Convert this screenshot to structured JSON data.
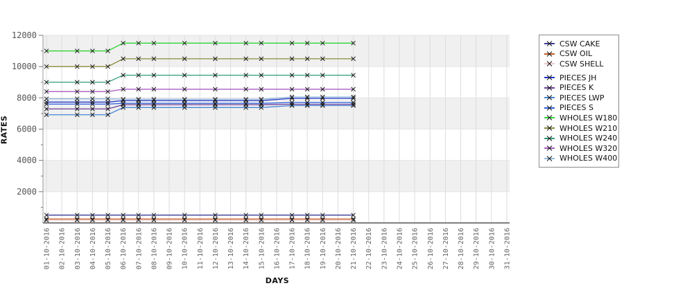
{
  "page": {
    "background": "#ffffff"
  },
  "axes": {
    "x_title": "DAYS",
    "y_title": "RATES",
    "tick_label_color": "#666666",
    "y_tick_label_color": "#555555",
    "axis_line_color": "#555555",
    "left_axis_color": "#999999",
    "grid_color": "#dcdcdc",
    "band_colors": [
      "#f0f0f0",
      "#ffffff"
    ],
    "marker_color": "#1a1a1a"
  },
  "legend": {
    "border_color": "#8a8a8a",
    "group_break_after": "CSW SHELL"
  },
  "chart_data": {
    "type": "line",
    "title": "",
    "xlabel": "DAYS",
    "ylabel": "RATES",
    "ylim": [
      0,
      12000
    ],
    "y_major_ticks": [
      2000,
      4000,
      6000,
      8000,
      10000,
      12000
    ],
    "y_minor_step": 1000,
    "grid": true,
    "legend_position": "top-right-outside",
    "marker": "x",
    "x_tick_labels": [
      "01-10-2016",
      "02-10-2016",
      "03-10-2016",
      "04-10-2016",
      "05-10-2016",
      "06-10-2016",
      "07-10-2016",
      "08-10-2016",
      "09-10-2016",
      "10-10-2016",
      "11-10-2016",
      "12-10-2016",
      "13-10-2016",
      "14-10-2016",
      "15-10-2016",
      "16-10-2016",
      "17-10-2016",
      "18-10-2016",
      "19-10-2016",
      "20-10-2016",
      "21-10-2016",
      "22-10-2016",
      "23-10-2016",
      "24-10-2016",
      "25-10-2016",
      "26-10-2016",
      "27-10-2016",
      "28-10-2016",
      "29-10-2016",
      "30-10-2016",
      "31-10-2016"
    ],
    "data_days": [
      1,
      3,
      4,
      5,
      6,
      7,
      8,
      10,
      12,
      14,
      15,
      17,
      18,
      19,
      21
    ],
    "series": [
      {
        "name": "CSW CAKE",
        "color": "#3b3b98",
        "values": [
          500,
          500,
          500,
          500,
          500,
          500,
          500,
          500,
          500,
          500,
          500,
          500,
          500,
          500,
          500
        ]
      },
      {
        "name": "CSW OIL",
        "color": "#c05a20",
        "values": [
          250,
          250,
          250,
          250,
          250,
          250,
          250,
          250,
          250,
          250,
          250,
          250,
          250,
          250,
          250
        ]
      },
      {
        "name": "CSW SHELL",
        "color": "#eec5c5",
        "values": [
          175,
          175,
          175,
          175,
          175,
          175,
          175,
          175,
          175,
          175,
          175,
          175,
          175,
          175,
          175
        ]
      },
      {
        "name": "PIECES JH",
        "color": "#2036cc",
        "values": [
          7730,
          7730,
          7730,
          7730,
          7820,
          7820,
          7820,
          7820,
          7820,
          7820,
          7820,
          7970,
          7970,
          7970,
          7970
        ]
      },
      {
        "name": "PIECES K",
        "color": "#6a3d9a",
        "values": [
          7290,
          7290,
          7290,
          7290,
          7560,
          7560,
          7560,
          7560,
          7560,
          7560,
          7560,
          7590,
          7590,
          7590,
          7590
        ]
      },
      {
        "name": "PIECES LWP",
        "color": "#4585d6",
        "values": [
          6920,
          6920,
          6920,
          6920,
          7380,
          7380,
          7380,
          7380,
          7380,
          7380,
          7380,
          7505,
          7505,
          7505,
          7505
        ]
      },
      {
        "name": "PIECES S",
        "color": "#2a5cdc",
        "values": [
          7600,
          7600,
          7600,
          7600,
          7650,
          7650,
          7650,
          7650,
          7650,
          7650,
          7650,
          7700,
          7700,
          7700,
          7700
        ]
      },
      {
        "name": "WHOLES W180",
        "color": "#2ed32e",
        "values": [
          11000,
          11000,
          11000,
          11000,
          11500,
          11500,
          11500,
          11500,
          11500,
          11500,
          11500,
          11500,
          11500,
          11500,
          11500
        ]
      },
      {
        "name": "WHOLES W210",
        "color": "#8a8a3c",
        "values": [
          10000,
          10000,
          10000,
          10000,
          10500,
          10500,
          10500,
          10500,
          10500,
          10500,
          10500,
          10500,
          10500,
          10500,
          10500
        ]
      },
      {
        "name": "WHOLES W240",
        "color": "#2e9c78",
        "values": [
          9000,
          9000,
          9000,
          9000,
          9450,
          9450,
          9450,
          9450,
          9450,
          9450,
          9450,
          9450,
          9450,
          9450,
          9450
        ]
      },
      {
        "name": "WHOLES W320",
        "color": "#a95cc0",
        "values": [
          8400,
          8400,
          8400,
          8400,
          8550,
          8550,
          8550,
          8550,
          8550,
          8550,
          8550,
          8550,
          8550,
          8550,
          8550
        ]
      },
      {
        "name": "WHOLES W400",
        "color": "#93bade",
        "values": [
          7940,
          7940,
          7940,
          7940,
          7910,
          7910,
          7910,
          7910,
          7910,
          7910,
          7910,
          8060,
          8060,
          8060,
          8060
        ]
      }
    ]
  }
}
